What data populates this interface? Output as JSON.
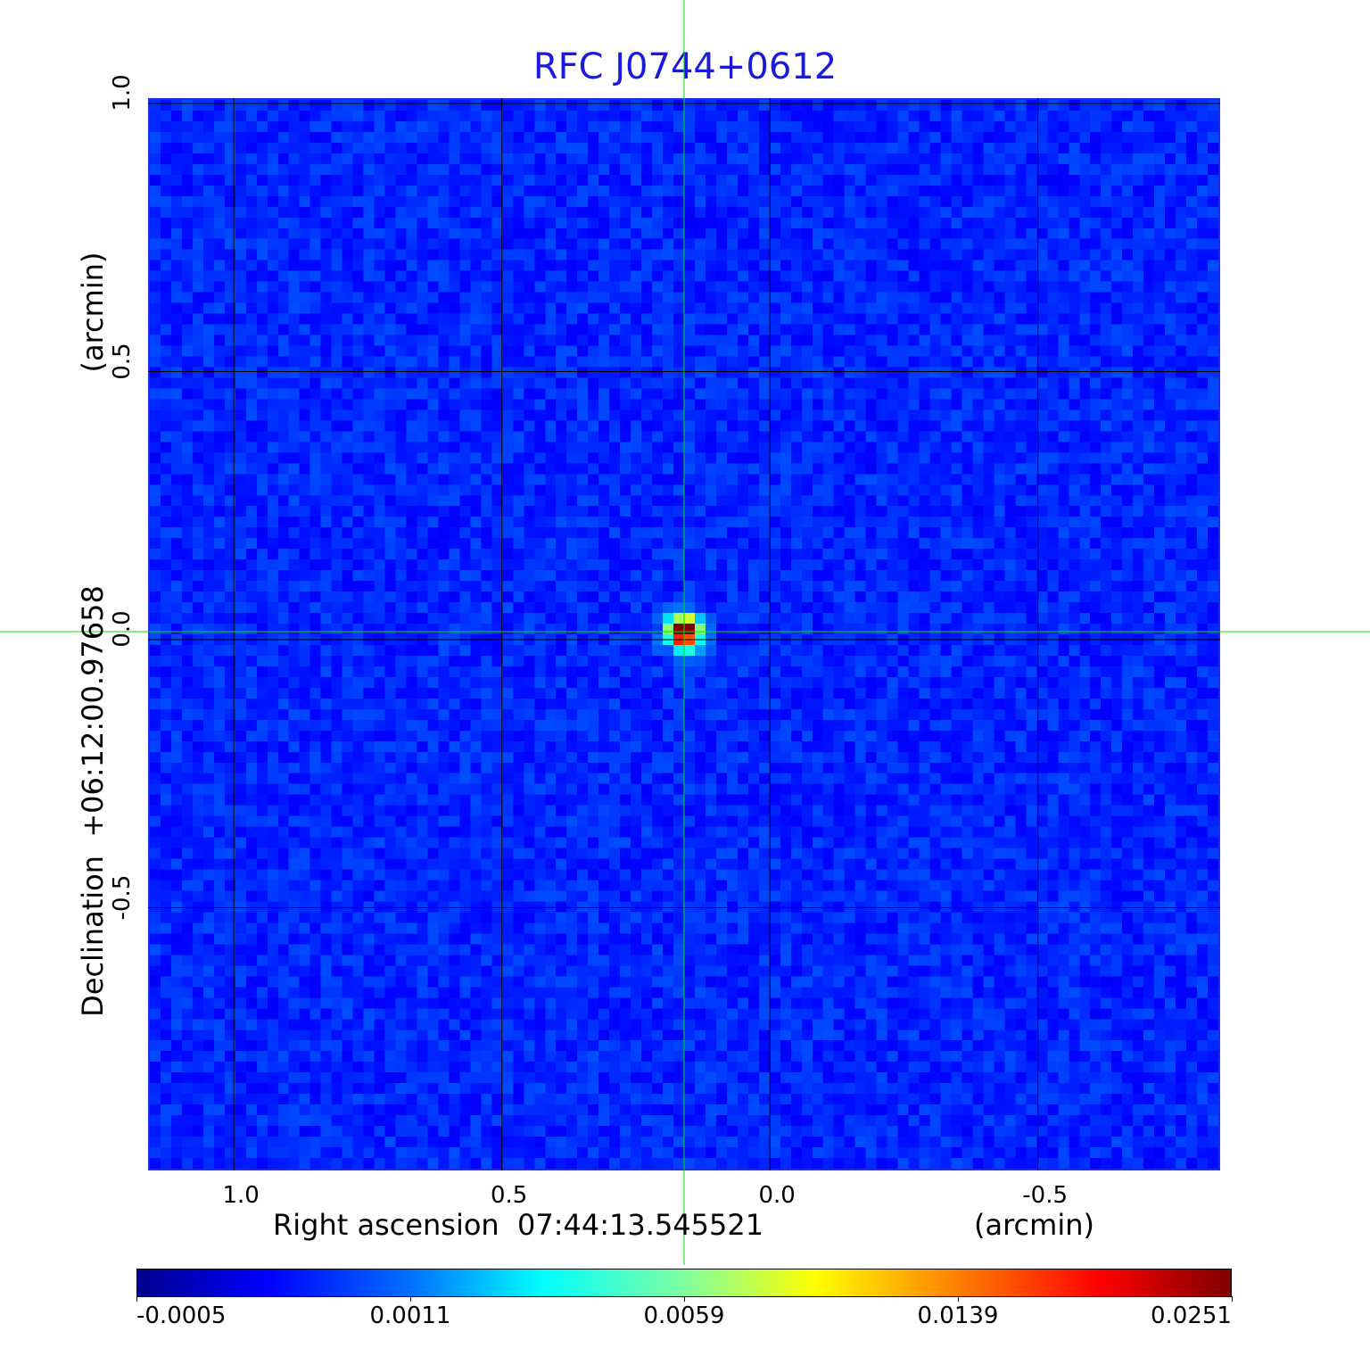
{
  "chart_data": {
    "type": "heatmap",
    "title": "RFC J0744+0612",
    "xlabel": "Right ascension  07:44:13.545521",
    "xunit": "(arcmin)",
    "ylabel": "Declination  +06:12:00.97658",
    "yunit": "(arcmin)",
    "xlim": [
      1.16,
      -0.84
    ],
    "ylim": [
      -0.99,
      1.01
    ],
    "x_ticks": [
      1.0,
      0.5,
      0.0,
      -0.5
    ],
    "x_tick_labels": [
      "1.0",
      "0.5",
      "0.0",
      "-0.5"
    ],
    "y_ticks": [
      1.0,
      0.5,
      0.0,
      -0.5
    ],
    "y_tick_labels": [
      "1.0",
      "0.5",
      "0.0",
      "-0.5"
    ],
    "grid": true,
    "grid_color": "#000000",
    "crosshair": {
      "x": 0.16,
      "y": 0.015,
      "color": "#00e000"
    },
    "source": {
      "x": 0.16,
      "y": 0.015,
      "peak": 0.0251
    },
    "background_level": 0.0003,
    "colormap": "jet",
    "colorbar": {
      "ticks": [
        -0.0005,
        0.0011,
        0.0059,
        0.0139,
        0.0251
      ],
      "tick_labels": [
        "-0.0005",
        "0.0011",
        "0.0059",
        "0.0139",
        "0.0251"
      ],
      "placement": "bottom"
    }
  }
}
